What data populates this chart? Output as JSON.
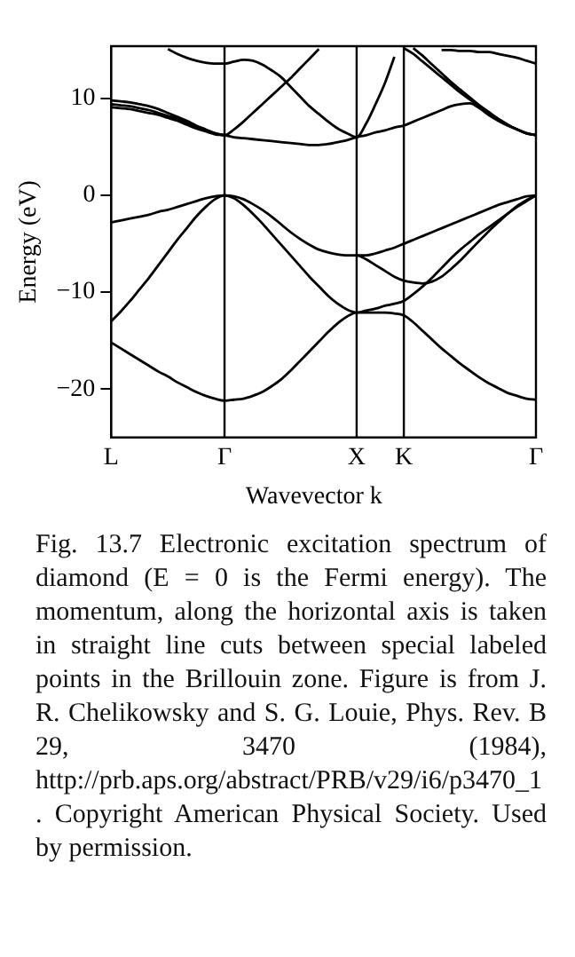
{
  "chart_data": {
    "type": "line",
    "xlabel": "Wavevector k⃗",
    "ylabel": "Energy (eV)",
    "categories": [
      "L",
      null,
      null,
      null,
      null,
      null,
      null,
      null,
      null,
      null,
      null,
      null,
      "Γ",
      null,
      null,
      null,
      null,
      null,
      null,
      null,
      null,
      null,
      null,
      null,
      null,
      null,
      "X",
      null,
      null,
      null,
      null,
      "K",
      null,
      null,
      null,
      null,
      null,
      null,
      null,
      null,
      null,
      null,
      null,
      null,
      null,
      "Γ"
    ],
    "ylim": [
      -25,
      15.4
    ],
    "yticks": [
      -20,
      -10,
      0,
      10
    ],
    "grid": false,
    "legend": false,
    "marker": "none",
    "line_style": "solid",
    "ref_lines": [
      {
        "axis": "x",
        "value": "Γ",
        "color": "#000000"
      },
      {
        "axis": "x",
        "value": "X",
        "color": "#000000"
      },
      {
        "axis": "x",
        "value": "K",
        "color": "#000000"
      }
    ],
    "series": [
      {
        "color": "#000000",
        "values": [
          -15.2,
          -15.8,
          -16.4,
          -17.0,
          -17.6,
          -18.2,
          -18.7,
          -19.3,
          -19.8,
          -20.3,
          -20.7,
          -21.0,
          -21.2,
          -21.1,
          -21.0,
          -20.7,
          -20.3,
          -19.7,
          -19.0,
          -18.1,
          -17.1,
          -16.1,
          -15.1,
          -14.1,
          -13.2,
          -12.5,
          -12.1,
          -12.1,
          -12.1,
          -12.1,
          -12.2,
          -12.4,
          -13.1,
          -14.0,
          -14.9,
          -15.8,
          -16.6,
          -17.4,
          -18.1,
          -18.8,
          -19.4,
          -19.9,
          -20.4,
          -20.7,
          -21.0,
          -21.1
        ]
      },
      {
        "color": "#000000",
        "values": [
          -13.0,
          -12.0,
          -10.9,
          -9.7,
          -8.5,
          -7.2,
          -5.9,
          -4.6,
          -3.4,
          -2.2,
          -1.2,
          -0.4,
          0,
          -0.3,
          -1.0,
          -1.9,
          -2.9,
          -4.0,
          -5.1,
          -6.2,
          -7.3,
          -8.4,
          -9.4,
          -10.4,
          -11.2,
          -11.8,
          -12.1,
          -11.9,
          -11.7,
          -11.4,
          -11.2,
          -10.9,
          -10.2,
          -9.4,
          -8.5,
          -7.5,
          -6.5,
          -5.6,
          -4.8,
          -4.0,
          -3.3,
          -2.6,
          -1.9,
          -1.2,
          -0.6,
          0
        ]
      },
      {
        "color": "#000000",
        "values": [
          -2.8,
          -2.6,
          -2.4,
          -2.2,
          -2.0,
          -1.7,
          -1.5,
          -1.2,
          -0.9,
          -0.6,
          -0.3,
          -0.1,
          0,
          -0.1,
          -0.4,
          -0.9,
          -1.5,
          -2.2,
          -3.0,
          -3.8,
          -4.5,
          -5.1,
          -5.6,
          -5.9,
          -6.1,
          -6.2,
          -6.2,
          -6.6,
          -7.2,
          -7.8,
          -8.4,
          -8.8,
          -9.0,
          -9.1,
          -8.9,
          -8.4,
          -7.6,
          -6.7,
          -5.7,
          -4.7,
          -3.7,
          -2.8,
          -1.9,
          -1.1,
          -0.5,
          0
        ]
      },
      {
        "color": "#000000",
        "values": [
          null,
          null,
          null,
          null,
          null,
          null,
          null,
          null,
          null,
          null,
          null,
          null,
          null,
          null,
          null,
          null,
          null,
          null,
          null,
          null,
          null,
          null,
          null,
          null,
          null,
          null,
          -6.2,
          -6.2,
          -6.0,
          -5.7,
          -5.4,
          -5.0,
          -4.6,
          -4.2,
          -3.8,
          -3.4,
          -3.0,
          -2.6,
          -2.2,
          -1.8,
          -1.4,
          -1.0,
          -0.7,
          -0.4,
          -0.1,
          0
        ]
      },
      {
        "color": "#000000",
        "values": [
          9.1,
          9.0,
          8.9,
          8.7,
          8.5,
          8.3,
          8.0,
          7.7,
          7.3,
          6.9,
          6.6,
          6.3,
          6.2,
          6.0,
          5.9,
          5.8,
          5.7,
          5.6,
          5.5,
          5.4,
          5.3,
          5.2,
          5.2,
          5.3,
          5.5,
          5.7,
          6.0,
          6.2,
          6.5,
          6.7,
          7.0,
          7.2,
          7.6,
          8.0,
          8.4,
          8.8,
          9.2,
          9.4,
          9.5,
          9.0,
          8.3,
          7.7,
          7.2,
          6.8,
          6.4,
          6.2
        ]
      },
      {
        "color": "#000000",
        "values": [
          9.4,
          9.3,
          9.2,
          9.0,
          8.8,
          8.5,
          8.2,
          7.9,
          7.5,
          7.1,
          6.7,
          6.4,
          6.2,
          6.8,
          7.6,
          8.5,
          9.4,
          10.3,
          11.2,
          12.1,
          13.1,
          14.1,
          15.1,
          null,
          null,
          null,
          null,
          null,
          null,
          null,
          null,
          null,
          null,
          null,
          null,
          null,
          null,
          null,
          null,
          null,
          null,
          null,
          null,
          null,
          null,
          null
        ]
      },
      {
        "color": "#000000",
        "values": [
          9.8,
          9.7,
          9.6,
          9.4,
          9.2,
          8.9,
          8.5,
          8.1,
          7.7,
          7.2,
          6.8,
          6.4,
          6.2,
          null,
          null,
          null,
          null,
          null,
          null,
          null,
          null,
          null,
          null,
          null,
          null,
          null,
          null,
          null,
          null,
          null,
          null,
          null,
          null,
          null,
          null,
          null,
          null,
          null,
          null,
          null,
          null,
          null,
          null,
          null,
          null,
          null
        ]
      },
      {
        "color": "#000000",
        "values": [
          null,
          null,
          null,
          null,
          null,
          null,
          15.1,
          14.6,
          14.2,
          13.9,
          13.7,
          13.6,
          13.6,
          13.8,
          14.0,
          13.9,
          13.5,
          12.9,
          12.2,
          11.2,
          10.2,
          9.2,
          8.4,
          7.6,
          6.9,
          6.4,
          6.0,
          7.4,
          9.4,
          11.6,
          14.3,
          null,
          null,
          null,
          null,
          null,
          null,
          null,
          null,
          null,
          null,
          null,
          null,
          null,
          null,
          null
        ]
      },
      {
        "color": "#000000",
        "values": [
          null,
          null,
          null,
          null,
          null,
          null,
          null,
          null,
          null,
          null,
          null,
          null,
          null,
          null,
          null,
          null,
          null,
          null,
          null,
          null,
          null,
          null,
          null,
          null,
          null,
          null,
          null,
          null,
          null,
          null,
          null,
          15.2,
          14.6,
          13.8,
          13.0,
          12.2,
          11.4,
          10.6,
          9.9,
          9.2,
          8.5,
          7.9,
          7.3,
          6.8,
          6.4,
          6.2
        ]
      },
      {
        "color": "#000000",
        "values": [
          null,
          null,
          null,
          null,
          null,
          null,
          null,
          null,
          null,
          null,
          null,
          null,
          null,
          null,
          null,
          null,
          null,
          null,
          null,
          null,
          null,
          null,
          null,
          null,
          null,
          null,
          null,
          null,
          null,
          null,
          null,
          null,
          15.2,
          14.4,
          13.5,
          12.6,
          11.7,
          10.9,
          10.1,
          9.3,
          8.6,
          7.9,
          7.3,
          6.8,
          6.4,
          6.2
        ]
      },
      {
        "color": "#000000",
        "values": [
          null,
          null,
          null,
          null,
          null,
          null,
          null,
          null,
          null,
          null,
          null,
          null,
          null,
          null,
          null,
          null,
          null,
          null,
          null,
          null,
          null,
          null,
          null,
          null,
          null,
          null,
          null,
          null,
          null,
          null,
          null,
          null,
          null,
          null,
          null,
          15.0,
          15.0,
          14.9,
          14.9,
          14.8,
          14.8,
          14.6,
          14.4,
          14.2,
          13.9,
          13.6
        ]
      }
    ],
    "annotations": [
      "Fig. 13.7 Electronic excitation spectrum of diamond (E = 0 is the Fermi energy). The momentum, along the horizontal axis is taken in straight line cuts between special labeled points in the Brillouin zone. Figure is from J. R. Chelikowsky and S. G. Louie, Phys. Rev. B 29, 3470 (1984), http://prb.aps.org/abstract/PRB/v29/i6/p3470_1. Copyright American Physical Society. Used by permission."
    ]
  }
}
